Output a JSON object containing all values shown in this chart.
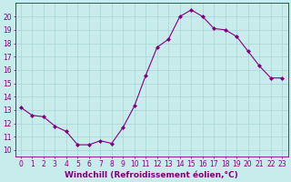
{
  "x": [
    0,
    1,
    2,
    3,
    4,
    5,
    6,
    7,
    8,
    9,
    10,
    11,
    12,
    13,
    14,
    15,
    16,
    17,
    18,
    19,
    20,
    21,
    22,
    23
  ],
  "y": [
    13.2,
    12.6,
    12.5,
    11.8,
    11.4,
    10.4,
    10.4,
    10.7,
    10.5,
    11.7,
    13.3,
    15.6,
    17.7,
    18.3,
    20.0,
    20.5,
    20.0,
    19.1,
    19.0,
    18.5,
    17.4,
    16.3,
    15.4,
    15.4
  ],
  "line_color": "#800080",
  "marker": "D",
  "marker_size": 2.0,
  "bg_color": "#c8ecec",
  "grid_color": "#a8d4d4",
  "xlabel": "Windchill (Refroidissement éolien,°C)",
  "ylabel": "",
  "xlim": [
    -0.5,
    23.5
  ],
  "ylim": [
    9.5,
    21.0
  ],
  "yticks": [
    10,
    11,
    12,
    13,
    14,
    15,
    16,
    17,
    18,
    19,
    20
  ],
  "xticks": [
    0,
    1,
    2,
    3,
    4,
    5,
    6,
    7,
    8,
    9,
    10,
    11,
    12,
    13,
    14,
    15,
    16,
    17,
    18,
    19,
    20,
    21,
    22,
    23
  ],
  "tick_color": "#800080",
  "label_color": "#800080",
  "tick_fontsize": 5.5,
  "xlabel_fontsize": 6.5
}
